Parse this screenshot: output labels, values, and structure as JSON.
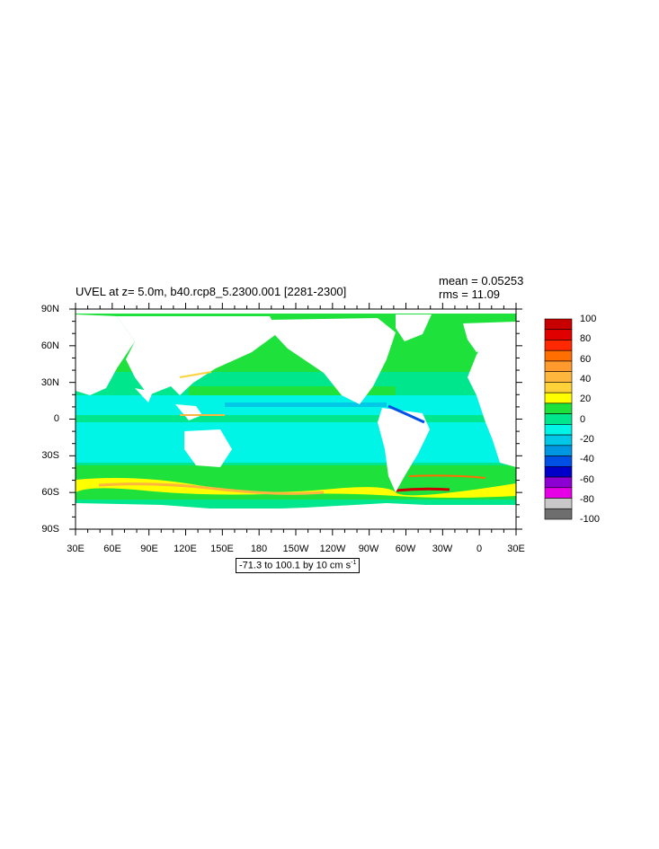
{
  "header": {
    "title": "UVEL at z=   5.0m, b40.rcp8_5.2300.001 [2281-2300]",
    "mean": "mean = 0.05253",
    "rms": "rms = 11.09"
  },
  "axes": {
    "y_labels": [
      "90N",
      "60N",
      "30N",
      "0",
      "30S",
      "60S",
      "90S"
    ],
    "x_labels": [
      "30E",
      "60E",
      "90E",
      "120E",
      "150E",
      "180",
      "150W",
      "120W",
      "90W",
      "60W",
      "30W",
      "0",
      "30E"
    ]
  },
  "colorbar": {
    "labels": [
      "100",
      "80",
      "60",
      "40",
      "20",
      "0",
      "-20",
      "-40",
      "-60",
      "-80",
      "-100"
    ],
    "colors": [
      "#c80000",
      "#e10000",
      "#ff2800",
      "#ff6e00",
      "#ff9a2e",
      "#ffb63c",
      "#ffd23a",
      "#ffff00",
      "#1ee13c",
      "#00e68c",
      "#00f5e6",
      "#00c8e6",
      "#0096e1",
      "#0050e6",
      "#0000c8",
      "#8c00d2",
      "#e600e6",
      "#c8c8c8",
      "#6e6e6e"
    ]
  },
  "range_note": {
    "text": "-71.3 to 100.1 by 10 cm s",
    "exponent": "-1"
  },
  "colors": {
    "ocean_green": "#1ee13c",
    "ocean_teal": "#00e68c",
    "ocean_cyan": "#00f5e6",
    "land": "#ffffff"
  }
}
